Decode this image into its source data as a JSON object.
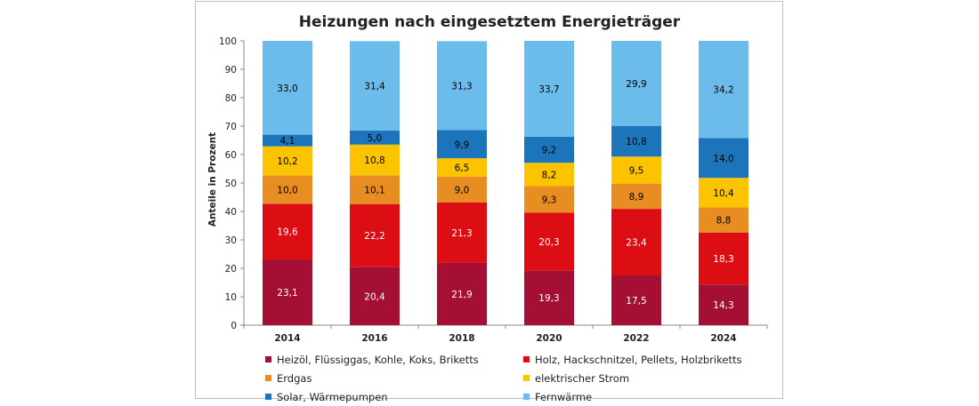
{
  "chart_data": {
    "type": "bar",
    "stacked": true,
    "title": "Heizungen nach eingesetztem Energieträger",
    "ylabel": "Anteile in Prozent",
    "xlabel": "",
    "ylim": [
      0,
      100
    ],
    "yticks": [
      0,
      10,
      20,
      30,
      40,
      50,
      60,
      70,
      80,
      90,
      100
    ],
    "categories": [
      "2014",
      "2016",
      "2018",
      "2020",
      "2022",
      "2024"
    ],
    "legend_position": "bottom",
    "series": [
      {
        "name": "Heizöl, Flüssiggas, Kohle, Koks, Briketts",
        "color": "#a50f33",
        "label_color": "#ffffff",
        "values": [
          23.1,
          20.4,
          21.9,
          19.3,
          17.5,
          14.3
        ],
        "labels": [
          "23,1",
          "20,4",
          "21,9",
          "19,3",
          "17,5",
          "14,3"
        ]
      },
      {
        "name": "Holz, Hackschnitzel, Pellets, Holzbriketts",
        "color": "#dd0d14",
        "label_color": "#ffffff",
        "values": [
          19.6,
          22.2,
          21.3,
          20.3,
          23.4,
          18.3
        ],
        "labels": [
          "19,6",
          "22,2",
          "21,3",
          "20,3",
          "23,4",
          "18,3"
        ]
      },
      {
        "name": "Erdgas",
        "color": "#e88d22",
        "label_color": "#000000",
        "values": [
          10.0,
          10.1,
          9.0,
          9.3,
          8.9,
          8.8
        ],
        "labels": [
          "10,0",
          "10,1",
          "9,0",
          "9,3",
          "8,9",
          "8,8"
        ]
      },
      {
        "name": "elektrischer Strom",
        "color": "#fcc400",
        "label_color": "#000000",
        "values": [
          10.2,
          10.8,
          6.5,
          8.2,
          9.5,
          10.4
        ],
        "labels": [
          "10,2",
          "10,8",
          "6,5",
          "8,2",
          "9,5",
          "10,4"
        ]
      },
      {
        "name": "Solar, Wärmepumpen",
        "color": "#1c75bb",
        "label_color": "#000000",
        "values": [
          4.1,
          5.0,
          9.9,
          9.2,
          10.8,
          14.0
        ],
        "labels": [
          "4,1",
          "5,0",
          "9,9",
          "9,2",
          "10,8",
          "14,0"
        ]
      },
      {
        "name": "Fernwärme",
        "color": "#6cbceb",
        "label_color": "#000000",
        "values": [
          33.0,
          31.4,
          31.3,
          33.7,
          29.9,
          34.2
        ],
        "labels": [
          "33,0",
          "31,4",
          "31,3",
          "33,7",
          "29,9",
          "34,2"
        ]
      }
    ]
  }
}
